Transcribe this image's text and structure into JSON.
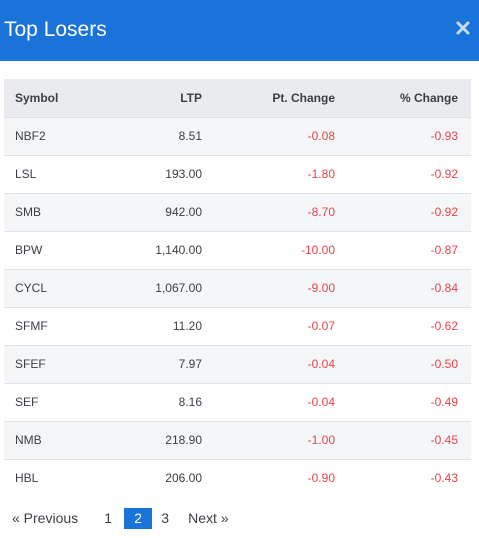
{
  "header": {
    "title": "Top Losers",
    "close_icon": "close-icon"
  },
  "table": {
    "columns": [
      "Symbol",
      "LTP",
      "Pt. Change",
      "% Change"
    ],
    "rows": [
      {
        "symbol": "NBF2",
        "ltp": "8.51",
        "pt_change": "-0.08",
        "pct_change": "-0.93"
      },
      {
        "symbol": "LSL",
        "ltp": "193.00",
        "pt_change": "-1.80",
        "pct_change": "-0.92"
      },
      {
        "symbol": "SMB",
        "ltp": "942.00",
        "pt_change": "-8.70",
        "pct_change": "-0.92"
      },
      {
        "symbol": "BPW",
        "ltp": "1,140.00",
        "pt_change": "-10.00",
        "pct_change": "-0.87"
      },
      {
        "symbol": "CYCL",
        "ltp": "1,067.00",
        "pt_change": "-9.00",
        "pct_change": "-0.84"
      },
      {
        "symbol": "SFMF",
        "ltp": "11.20",
        "pt_change": "-0.07",
        "pct_change": "-0.62"
      },
      {
        "symbol": "SFEF",
        "ltp": "7.97",
        "pt_change": "-0.04",
        "pct_change": "-0.50"
      },
      {
        "symbol": "SEF",
        "ltp": "8.16",
        "pt_change": "-0.04",
        "pct_change": "-0.49"
      },
      {
        "symbol": "NMB",
        "ltp": "218.90",
        "pt_change": "-1.00",
        "pct_change": "-0.45"
      },
      {
        "symbol": "HBL",
        "ltp": "206.00",
        "pt_change": "-0.90",
        "pct_change": "-0.43"
      }
    ]
  },
  "pagination": {
    "previous": "« Previous",
    "pages": [
      "1",
      "2",
      "3"
    ],
    "current": "2",
    "next": "Next »"
  },
  "colors": {
    "header_bg": "#1a73d9",
    "negative": "#e8434a",
    "active_page_bg": "#1a73d9"
  }
}
